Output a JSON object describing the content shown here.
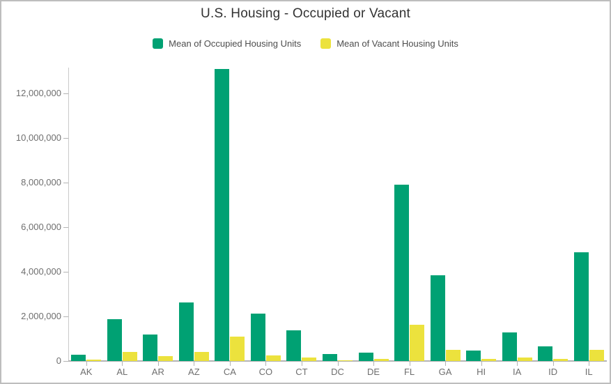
{
  "title": "U.S. Housing - Occupied or Vacant",
  "legend": {
    "items": [
      {
        "label": "Mean of Occupied Housing Units",
        "color": "#00a173"
      },
      {
        "label": "Mean of Vacant Housing Units",
        "color": "#ece23d"
      }
    ]
  },
  "chart_data": {
    "type": "bar",
    "title": "U.S. Housing - Occupied or Vacant",
    "xlabel": "",
    "ylabel": "",
    "grid": false,
    "legend_position": "top",
    "categories": [
      "AK",
      "AL",
      "AR",
      "AZ",
      "CA",
      "CO",
      "CT",
      "DC",
      "DE",
      "FL",
      "GA",
      "HI",
      "IA",
      "ID",
      "IL"
    ],
    "series": [
      {
        "name": "Mean of Occupied Housing Units",
        "color": "#00a173",
        "values": [
          280000,
          1870000,
          1190000,
          2620000,
          13080000,
          2140000,
          1390000,
          300000,
          370000,
          7910000,
          3830000,
          460000,
          1280000,
          660000,
          4870000
        ]
      },
      {
        "name": "Mean of Vacant Housing Units",
        "color": "#ece23d",
        "values": [
          60000,
          400000,
          210000,
          410000,
          1110000,
          240000,
          150000,
          40000,
          100000,
          1620000,
          500000,
          100000,
          150000,
          100000,
          490000
        ]
      }
    ],
    "ylim": [
      0,
      13400000
    ],
    "yticks": [
      0,
      2000000,
      4000000,
      6000000,
      8000000,
      10000000,
      12000000
    ],
    "ytick_labels": [
      "0",
      "2,000,000",
      "4,000,000",
      "6,000,000",
      "8,000,000",
      "10,000,000",
      "12,000,000"
    ]
  },
  "colors": {
    "occupied": "#00a173",
    "vacant": "#ece23d",
    "title_text": "#323232",
    "legend_text": "#4d4d4d",
    "axis_text": "#6e6e6e",
    "axis_line": "#b3b3b3",
    "border": "#bdbdbd"
  }
}
